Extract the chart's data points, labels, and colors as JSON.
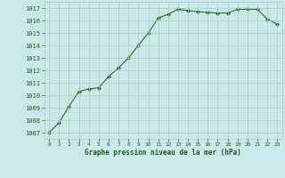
{
  "x": [
    0,
    1,
    2,
    3,
    4,
    5,
    6,
    7,
    8,
    9,
    10,
    11,
    12,
    13,
    14,
    15,
    16,
    17,
    18,
    19,
    20,
    21,
    22,
    23
  ],
  "y": [
    1007.0,
    1007.8,
    1009.1,
    1010.3,
    1010.5,
    1010.6,
    1011.5,
    1012.2,
    1013.0,
    1014.0,
    1015.0,
    1016.2,
    1016.5,
    1016.9,
    1016.8,
    1016.7,
    1016.65,
    1016.6,
    1016.6,
    1016.9,
    1016.9,
    1016.9,
    1016.1,
    1015.7
  ],
  "line_color": "#2d6a2d",
  "marker": "D",
  "marker_size": 2.0,
  "bg_color": "#caeaea",
  "grid_color": "#b0c8c8",
  "xlabel": "Graphe pression niveau de la mer (hPa)",
  "xlabel_color": "#1a5c1a",
  "tick_color": "#1a5c1a",
  "ylim": [
    1006.5,
    1017.5
  ],
  "xlim": [
    -0.5,
    23.5
  ],
  "yticks": [
    1007,
    1008,
    1009,
    1010,
    1011,
    1012,
    1013,
    1014,
    1015,
    1016,
    1017
  ],
  "xticks": [
    0,
    1,
    2,
    3,
    4,
    5,
    6,
    7,
    8,
    9,
    10,
    11,
    12,
    13,
    14,
    15,
    16,
    17,
    18,
    19,
    20,
    21,
    22,
    23
  ]
}
